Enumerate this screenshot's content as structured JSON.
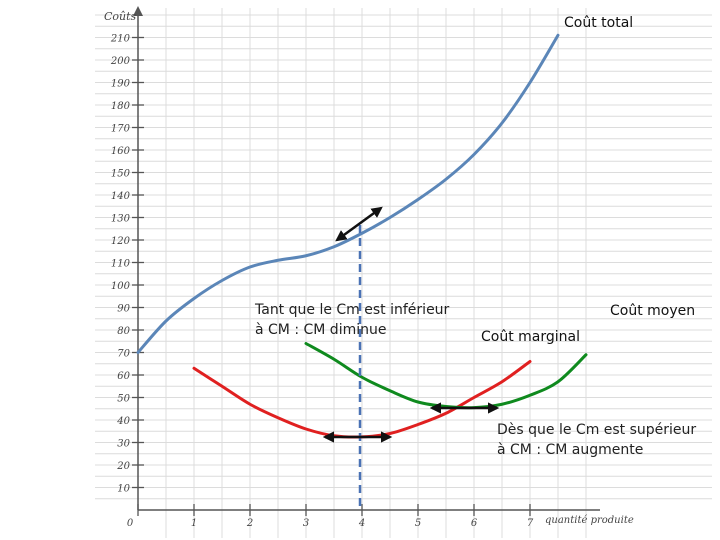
{
  "chart_data": {
    "type": "line",
    "xlabel": "quantité produite",
    "ylabel": "Coûts",
    "xlim": [
      0,
      7.5
    ],
    "ylim": [
      0,
      210
    ],
    "x_ticks": [
      "0",
      "1",
      "2",
      "3",
      "4",
      "5",
      "6",
      "7"
    ],
    "y_ticks": [
      "10",
      "20",
      "30",
      "40",
      "50",
      "60",
      "70",
      "80",
      "90",
      "100",
      "110",
      "120",
      "130",
      "140",
      "150",
      "160",
      "170",
      "180",
      "190",
      "200",
      "210"
    ],
    "grid": true,
    "series": [
      {
        "name": "Coût total",
        "color": "#5b86b8",
        "x": [
          0,
          0.5,
          1,
          1.5,
          2,
          2.5,
          3,
          3.5,
          4,
          4.5,
          5,
          5.5,
          6,
          6.5,
          7,
          7.5
        ],
        "y": [
          70,
          84,
          94,
          102,
          108,
          111,
          113,
          117,
          123,
          130,
          138,
          147,
          158,
          172,
          190,
          211
        ]
      },
      {
        "name": "Coût marginal",
        "color": "#e02020",
        "x": [
          1,
          1.5,
          2,
          2.5,
          3,
          3.5,
          4,
          4.5,
          5,
          5.5,
          6,
          6.5,
          7
        ],
        "y": [
          63,
          55,
          47,
          41,
          36,
          33,
          32.5,
          34,
          38,
          43,
          50,
          57,
          66
        ]
      },
      {
        "name": "Coût moyen",
        "color": "#0f8a1e",
        "x": [
          3,
          3.5,
          4,
          4.5,
          5,
          5.5,
          6,
          6.5,
          7,
          7.5,
          8
        ],
        "y": [
          74,
          67,
          59,
          53,
          48,
          46,
          45.5,
          47,
          51,
          57,
          69
        ]
      }
    ],
    "annotations": [
      {
        "text": "Coût total"
      },
      {
        "text": "Coût moyen"
      },
      {
        "text": "Coût marginal"
      },
      {
        "text": "Tant que le Cm est inférieur\nà CM : CM diminue"
      },
      {
        "text": "Dès que le Cm est supérieur\nà CM : CM augmente"
      }
    ]
  }
}
